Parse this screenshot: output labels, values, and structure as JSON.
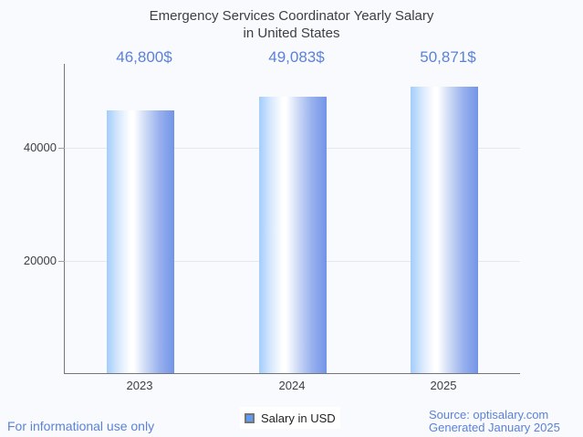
{
  "title": {
    "line1": "Emergency Services Coordinator Yearly Salary",
    "line2": "in United States"
  },
  "chart_data": {
    "type": "bar",
    "title": "Emergency Services Coordinator Yearly Salary in United States",
    "categories": [
      "2023",
      "2024",
      "2025"
    ],
    "series": [
      {
        "name": "Salary in USD",
        "values": [
          46800,
          49083,
          50871
        ],
        "value_labels": [
          "46,800$",
          "49,083$",
          "50,871$"
        ]
      }
    ],
    "xlabel": "",
    "ylabel": "",
    "ylim": [
      0,
      55000
    ],
    "yticks": [
      20000,
      40000
    ],
    "ytick_labels": [
      "20000",
      "40000"
    ],
    "grid": "horizontal gridlines at labeled yticks only",
    "legend_position": "bottom-center",
    "bar_gradient_stops": [
      "#a3cdfb 0%",
      "#d9e9fd 18%",
      "#ffffff 35%",
      "#ffffff 40%",
      "#ccd9f5 58%",
      "#98b1ee 78%",
      "#7394e7 100%"
    ]
  },
  "legend": {
    "label": "Salary in USD"
  },
  "footer": {
    "disclaimer": "For informational use only",
    "source": "Source: optisalary.com",
    "generated": "Generated January 2025"
  },
  "colors": {
    "background": "#f9fafd",
    "title_text": "#3c4043",
    "value_label_text": "#5b82d7",
    "footer_text": "#5b82d7",
    "axis_line": "#757575",
    "gridline": "#e4e7ec",
    "tick_text": "#3c4043",
    "legend_swatch_fill": "#5f9bf2",
    "legend_swatch_border": "#757575",
    "legend_text": "#1f1f1f",
    "legend_background": "#ffffff"
  }
}
